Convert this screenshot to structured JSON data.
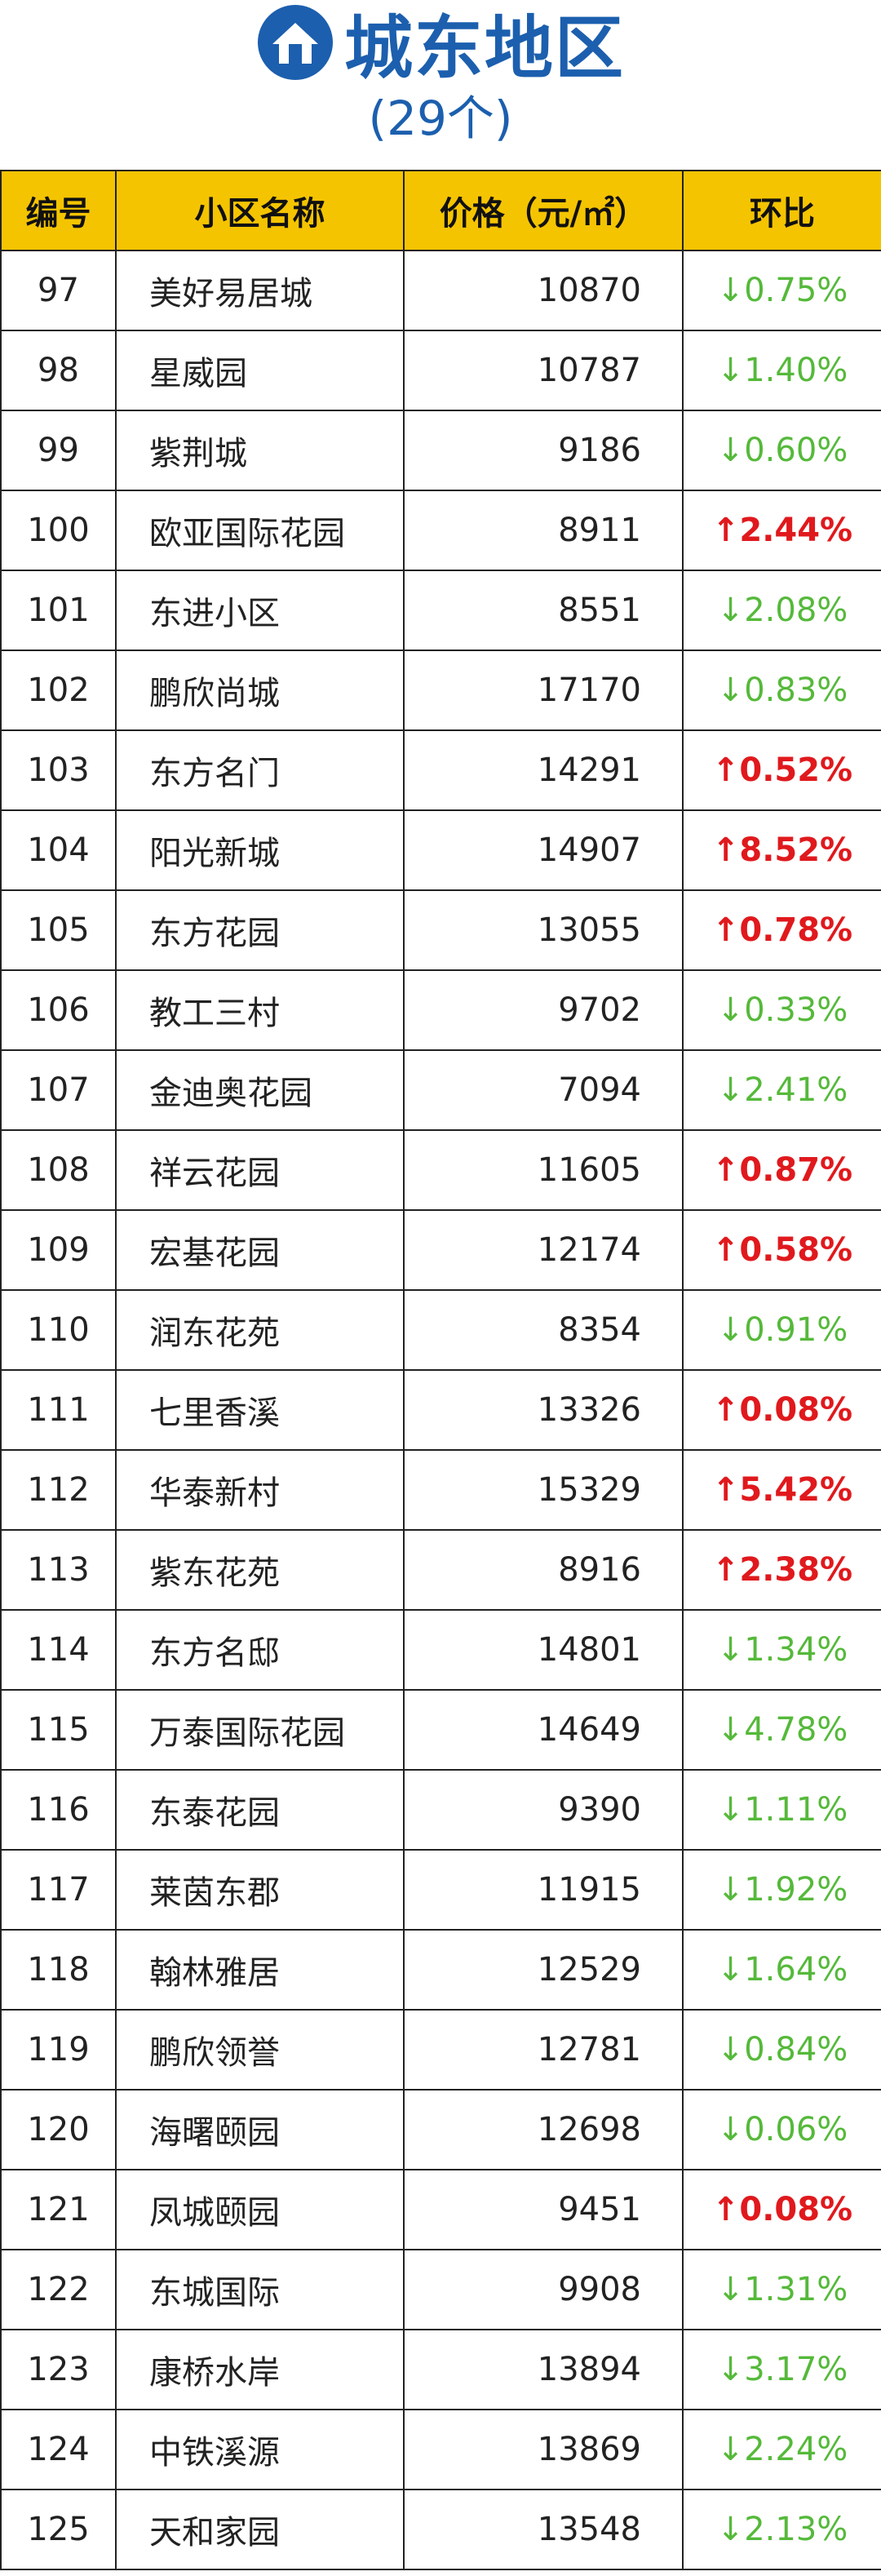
{
  "header": {
    "title": "城东地区",
    "subtitle": "(29个)"
  },
  "table": {
    "columns": [
      "编号",
      "小区名称",
      "价格（元/㎡）",
      "环比"
    ],
    "rows": [
      [
        "97",
        "美好易居城",
        "10870",
        "↓0.75%"
      ],
      [
        "98",
        "星威园",
        "10787",
        "↓1.40%"
      ],
      [
        "99",
        "紫荆城",
        "9186",
        "↓0.60%"
      ],
      [
        "100",
        "欧亚国际花园",
        "8911",
        "↑2.44%"
      ],
      [
        "101",
        "东进小区",
        "8551",
        "↓2.08%"
      ],
      [
        "102",
        "鹏欣尚城",
        "17170",
        "↓0.83%"
      ],
      [
        "103",
        "东方名门",
        "14291",
        "↑0.52%"
      ],
      [
        "104",
        "阳光新城",
        "14907",
        "↑8.52%"
      ],
      [
        "105",
        "东方花园",
        "13055",
        "↑0.78%"
      ],
      [
        "106",
        "教工三村",
        "9702",
        "↓0.33%"
      ],
      [
        "107",
        "金迪奥花园",
        "7094",
        "↓2.41%"
      ],
      [
        "108",
        "祥云花园",
        "11605",
        "↑0.87%"
      ],
      [
        "109",
        "宏基花园",
        "12174",
        "↑0.58%"
      ],
      [
        "110",
        "润东花苑",
        "8354",
        "↓0.91%"
      ],
      [
        "111",
        "七里香溪",
        "13326",
        "↑0.08%"
      ],
      [
        "112",
        "华泰新村",
        "15329",
        "↑5.42%"
      ],
      [
        "113",
        "紫东花苑",
        "8916",
        "↑2.38%"
      ],
      [
        "114",
        "东方名邸",
        "14801",
        "↓1.34%"
      ],
      [
        "115",
        "万泰国际花园",
        "14649",
        "↓4.78%"
      ],
      [
        "116",
        "东泰花园",
        "9390",
        "↓1.11%"
      ],
      [
        "117",
        "莱茵东郡",
        "11915",
        "↓1.92%"
      ],
      [
        "118",
        "翰林雅居",
        "12529",
        "↓1.64%"
      ],
      [
        "119",
        "鹏欣领誉",
        "12781",
        "↓0.84%"
      ],
      [
        "120",
        "海曙颐园",
        "12698",
        "↓0.06%"
      ],
      [
        "121",
        "凤城颐园",
        "9451",
        "↑0.08%"
      ],
      [
        "122",
        "东城国际",
        "9908",
        "↓1.31%"
      ],
      [
        "123",
        "康桥水岸",
        "13894",
        "↓3.17%"
      ],
      [
        "124",
        "中铁溪源",
        "13869",
        "↓2.24%"
      ],
      [
        "125",
        "天和家园",
        "13548",
        "↓2.13%"
      ]
    ]
  }
}
